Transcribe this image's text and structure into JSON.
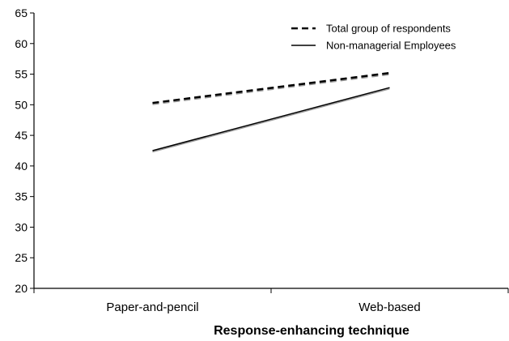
{
  "chart_data": {
    "type": "line",
    "title": "",
    "xlabel": "Response-enhancing technique",
    "ylabel": "",
    "categories": [
      "Paper-and-pencil",
      "Web-based"
    ],
    "series": [
      {
        "name": "Total group of respondents",
        "values": [
          50.3,
          55.2
        ],
        "style": "dashed",
        "color": "#000000"
      },
      {
        "name": "Non-managerial Employees",
        "values": [
          42.5,
          52.8
        ],
        "style": "solid",
        "color": "#000000"
      }
    ],
    "ylim": [
      20,
      65
    ],
    "yticks": [
      20,
      25,
      30,
      35,
      40,
      45,
      50,
      55,
      60,
      65
    ],
    "grid": false,
    "legend_position": "top-right"
  }
}
